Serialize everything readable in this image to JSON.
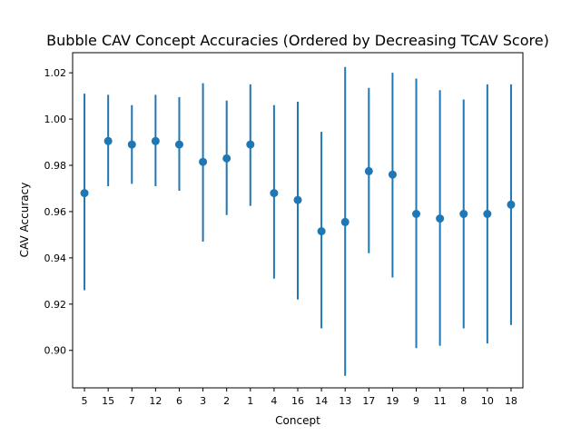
{
  "chart_data": {
    "type": "scatter",
    "title": "Bubble CAV Concept Accuracies (Ordered by Decreasing TCAV Score)",
    "xlabel": "Concept",
    "ylabel": "CAV Accuracy",
    "categories": [
      "5",
      "15",
      "7",
      "12",
      "6",
      "3",
      "2",
      "1",
      "4",
      "16",
      "14",
      "13",
      "17",
      "19",
      "9",
      "11",
      "8",
      "10",
      "18"
    ],
    "series": [
      {
        "values": [
          0.968,
          0.9905,
          0.989,
          0.9905,
          0.989,
          0.9815,
          0.983,
          0.989,
          0.968,
          0.965,
          0.9515,
          0.9555,
          0.9775,
          0.976,
          0.959,
          0.957,
          0.959,
          0.959,
          0.963
        ],
        "error_low": [
          0.926,
          0.971,
          0.972,
          0.971,
          0.969,
          0.947,
          0.9585,
          0.9625,
          0.931,
          0.922,
          0.9095,
          0.889,
          0.942,
          0.9315,
          0.901,
          0.902,
          0.9095,
          0.903,
          0.911
        ],
        "error_high": [
          1.011,
          1.0105,
          1.006,
          1.0105,
          1.0095,
          1.0155,
          1.008,
          1.015,
          1.006,
          1.0075,
          0.9945,
          1.0225,
          1.0135,
          1.02,
          1.0175,
          1.0125,
          1.0085,
          1.015,
          1.015
        ]
      }
    ],
    "yticks": [
      0.9,
      0.92,
      0.94,
      0.96,
      0.98,
      1.0,
      1.02
    ],
    "ytick_labels": [
      "0.90",
      "0.92",
      "0.94",
      "0.96",
      "0.98",
      "1.00",
      "1.02"
    ],
    "ylim": [
      0.8838,
      1.0287
    ],
    "grid": false,
    "colors": {
      "series": "#1f77b4",
      "axis": "#000000",
      "background": "#ffffff"
    }
  }
}
